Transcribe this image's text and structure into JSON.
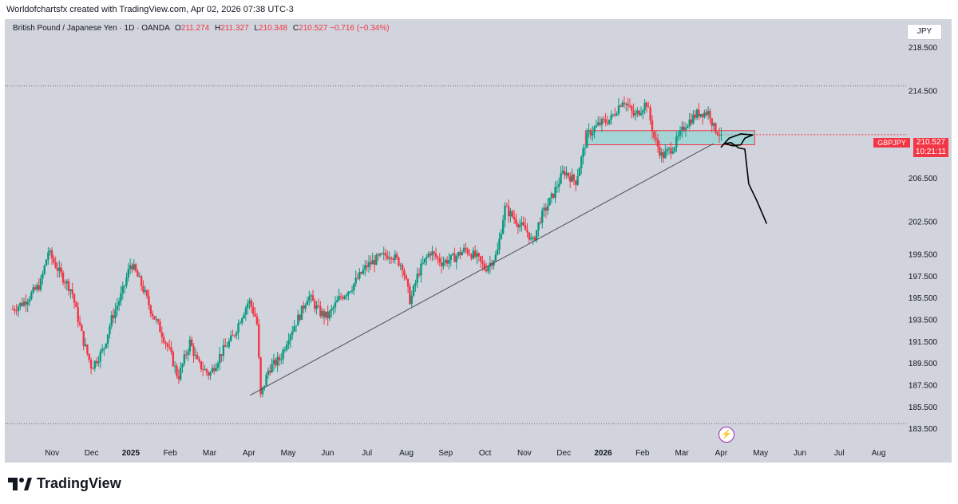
{
  "header": {
    "attribution": "Worldofchartsfx created with TradingView.com, Apr 02, 2026 07:38 UTC-3"
  },
  "legend": {
    "symbol_desc": "British Pound / Japanese Yen · 1D · OANDA",
    "o_label": "O",
    "o_value": "211.274",
    "h_label": "H",
    "h_value": "211.327",
    "l_label": "L",
    "l_value": "210.348",
    "c_label": "C",
    "c_value": "210.527",
    "change": "−0.716 (−0.34%)"
  },
  "currency_button": "JPY",
  "price_tag": {
    "symbol": "GBPJPY",
    "price": "210.527",
    "countdown": "10:21:11"
  },
  "footer": {
    "brand": "TradingView"
  },
  "colors": {
    "up": "#089981",
    "down": "#f23645",
    "bg": "#d1d4dc",
    "zone_fill": "#7fd3cf",
    "zone_border": "#f23645"
  },
  "chart_data": {
    "type": "candlestick",
    "title": "British Pound / Japanese Yen · 1D · OANDA",
    "ylim": [
      182.7,
      220.4
    ],
    "y_ticks": [
      "218.500",
      "214.500",
      "210.527",
      "206.500",
      "202.500",
      "199.500",
      "197.500",
      "195.500",
      "193.500",
      "191.500",
      "189.500",
      "187.500",
      "185.500",
      "183.500"
    ],
    "y_tick_values": [
      218.5,
      214.5,
      210.53,
      206.5,
      202.5,
      199.5,
      197.5,
      195.5,
      193.5,
      191.5,
      189.5,
      187.5,
      185.5,
      183.5
    ],
    "x_ticks": [
      "Nov",
      "Dec",
      "2025",
      "Feb",
      "Mar",
      "Apr",
      "May",
      "Jun",
      "Jul",
      "Aug",
      "Sep",
      "Oct",
      "Nov",
      "Dec",
      "2026",
      "Feb",
      "Mar",
      "Apr",
      "May",
      "Jun",
      "Jul",
      "Aug"
    ],
    "x_tick_months": [
      1,
      2,
      3,
      4,
      5,
      6,
      7,
      8,
      9,
      10,
      11,
      12,
      13,
      14,
      15,
      16,
      17,
      18,
      19,
      20,
      21,
      22
    ],
    "bold_ticks": [
      "2025",
      "2026"
    ],
    "path": [
      [
        0,
        194.5
      ],
      [
        0.3,
        195.2
      ],
      [
        0.7,
        196.8
      ],
      [
        0.9,
        199.8
      ],
      [
        1.2,
        197.8
      ],
      [
        1.5,
        196.2
      ],
      [
        1.6,
        194.5
      ],
      [
        1.8,
        191.5
      ],
      [
        2.0,
        189.2
      ],
      [
        2.3,
        190.8
      ],
      [
        2.5,
        193.5
      ],
      [
        2.8,
        196.2
      ],
      [
        3.0,
        198.8
      ],
      [
        3.3,
        196.5
      ],
      [
        3.5,
        194.5
      ],
      [
        3.8,
        192.2
      ],
      [
        4.0,
        190.5
      ],
      [
        4.2,
        188.2
      ],
      [
        4.5,
        191.5
      ],
      [
        4.7,
        189.5
      ],
      [
        5.0,
        188.5
      ],
      [
        5.3,
        190.5
      ],
      [
        5.6,
        192.0
      ],
      [
        5.8,
        193.8
      ],
      [
        6.0,
        195.3
      ],
      [
        6.2,
        193.5
      ],
      [
        6.3,
        186.5
      ],
      [
        6.5,
        189.0
      ],
      [
        6.8,
        190.0
      ],
      [
        7.0,
        192.0
      ],
      [
        7.3,
        194.0
      ],
      [
        7.5,
        195.8
      ],
      [
        7.8,
        194.2
      ],
      [
        8.0,
        193.8
      ],
      [
        8.3,
        195.5
      ],
      [
        8.6,
        196.5
      ],
      [
        8.8,
        197.5
      ],
      [
        9.0,
        198.5
      ],
      [
        9.3,
        199.2
      ],
      [
        9.6,
        199.6
      ],
      [
        9.9,
        198.5
      ],
      [
        10.1,
        195.2
      ],
      [
        10.3,
        197.8
      ],
      [
        10.6,
        199.8
      ],
      [
        10.9,
        198.8
      ],
      [
        11.2,
        199.2
      ],
      [
        11.5,
        200.0
      ],
      [
        11.8,
        199.2
      ],
      [
        12.0,
        198.2
      ],
      [
        12.3,
        199.5
      ],
      [
        12.5,
        203.8
      ],
      [
        12.7,
        203.0
      ],
      [
        12.9,
        202.2
      ],
      [
        13.1,
        201.5
      ],
      [
        13.2,
        200.5
      ],
      [
        13.4,
        202.8
      ],
      [
        13.7,
        204.8
      ],
      [
        14.0,
        207.2
      ],
      [
        14.3,
        206.2
      ],
      [
        14.6,
        210.5
      ],
      [
        14.9,
        211.5
      ],
      [
        15.2,
        212.0
      ],
      [
        15.5,
        213.8
      ],
      [
        15.8,
        212.2
      ],
      [
        16.1,
        213.5
      ],
      [
        16.3,
        210.2
      ],
      [
        16.5,
        208.5
      ],
      [
        16.8,
        209.5
      ],
      [
        17.1,
        211.5
      ],
      [
        17.4,
        212.5
      ],
      [
        17.7,
        212.6
      ],
      [
        17.8,
        211.2
      ],
      [
        18.0,
        210.5
      ]
    ],
    "level_lines": [
      215.0,
      184.0
    ],
    "trendline": {
      "start": [
        6.03,
        186.6
      ],
      "end": [
        17.8,
        209.7
      ]
    },
    "resistance_zone": {
      "x_start": 14.55,
      "x_end": 18.85,
      "y_low": 209.6,
      "y_high": 210.9
    },
    "projection_sketch": [
      [
        18.0,
        209.4
      ],
      [
        18.2,
        210.2
      ],
      [
        18.5,
        210.6
      ],
      [
        18.8,
        210.5
      ],
      [
        18.6,
        210.2
      ],
      [
        18.5,
        209.6
      ],
      [
        18.3,
        209.5
      ],
      [
        18.1,
        209.7
      ],
      [
        18.25,
        209.8
      ],
      [
        18.45,
        209.3
      ],
      [
        18.6,
        209.2
      ],
      [
        18.7,
        206.0
      ],
      [
        18.9,
        204.5
      ],
      [
        19.15,
        202.4
      ]
    ],
    "last_price": 210.527
  }
}
